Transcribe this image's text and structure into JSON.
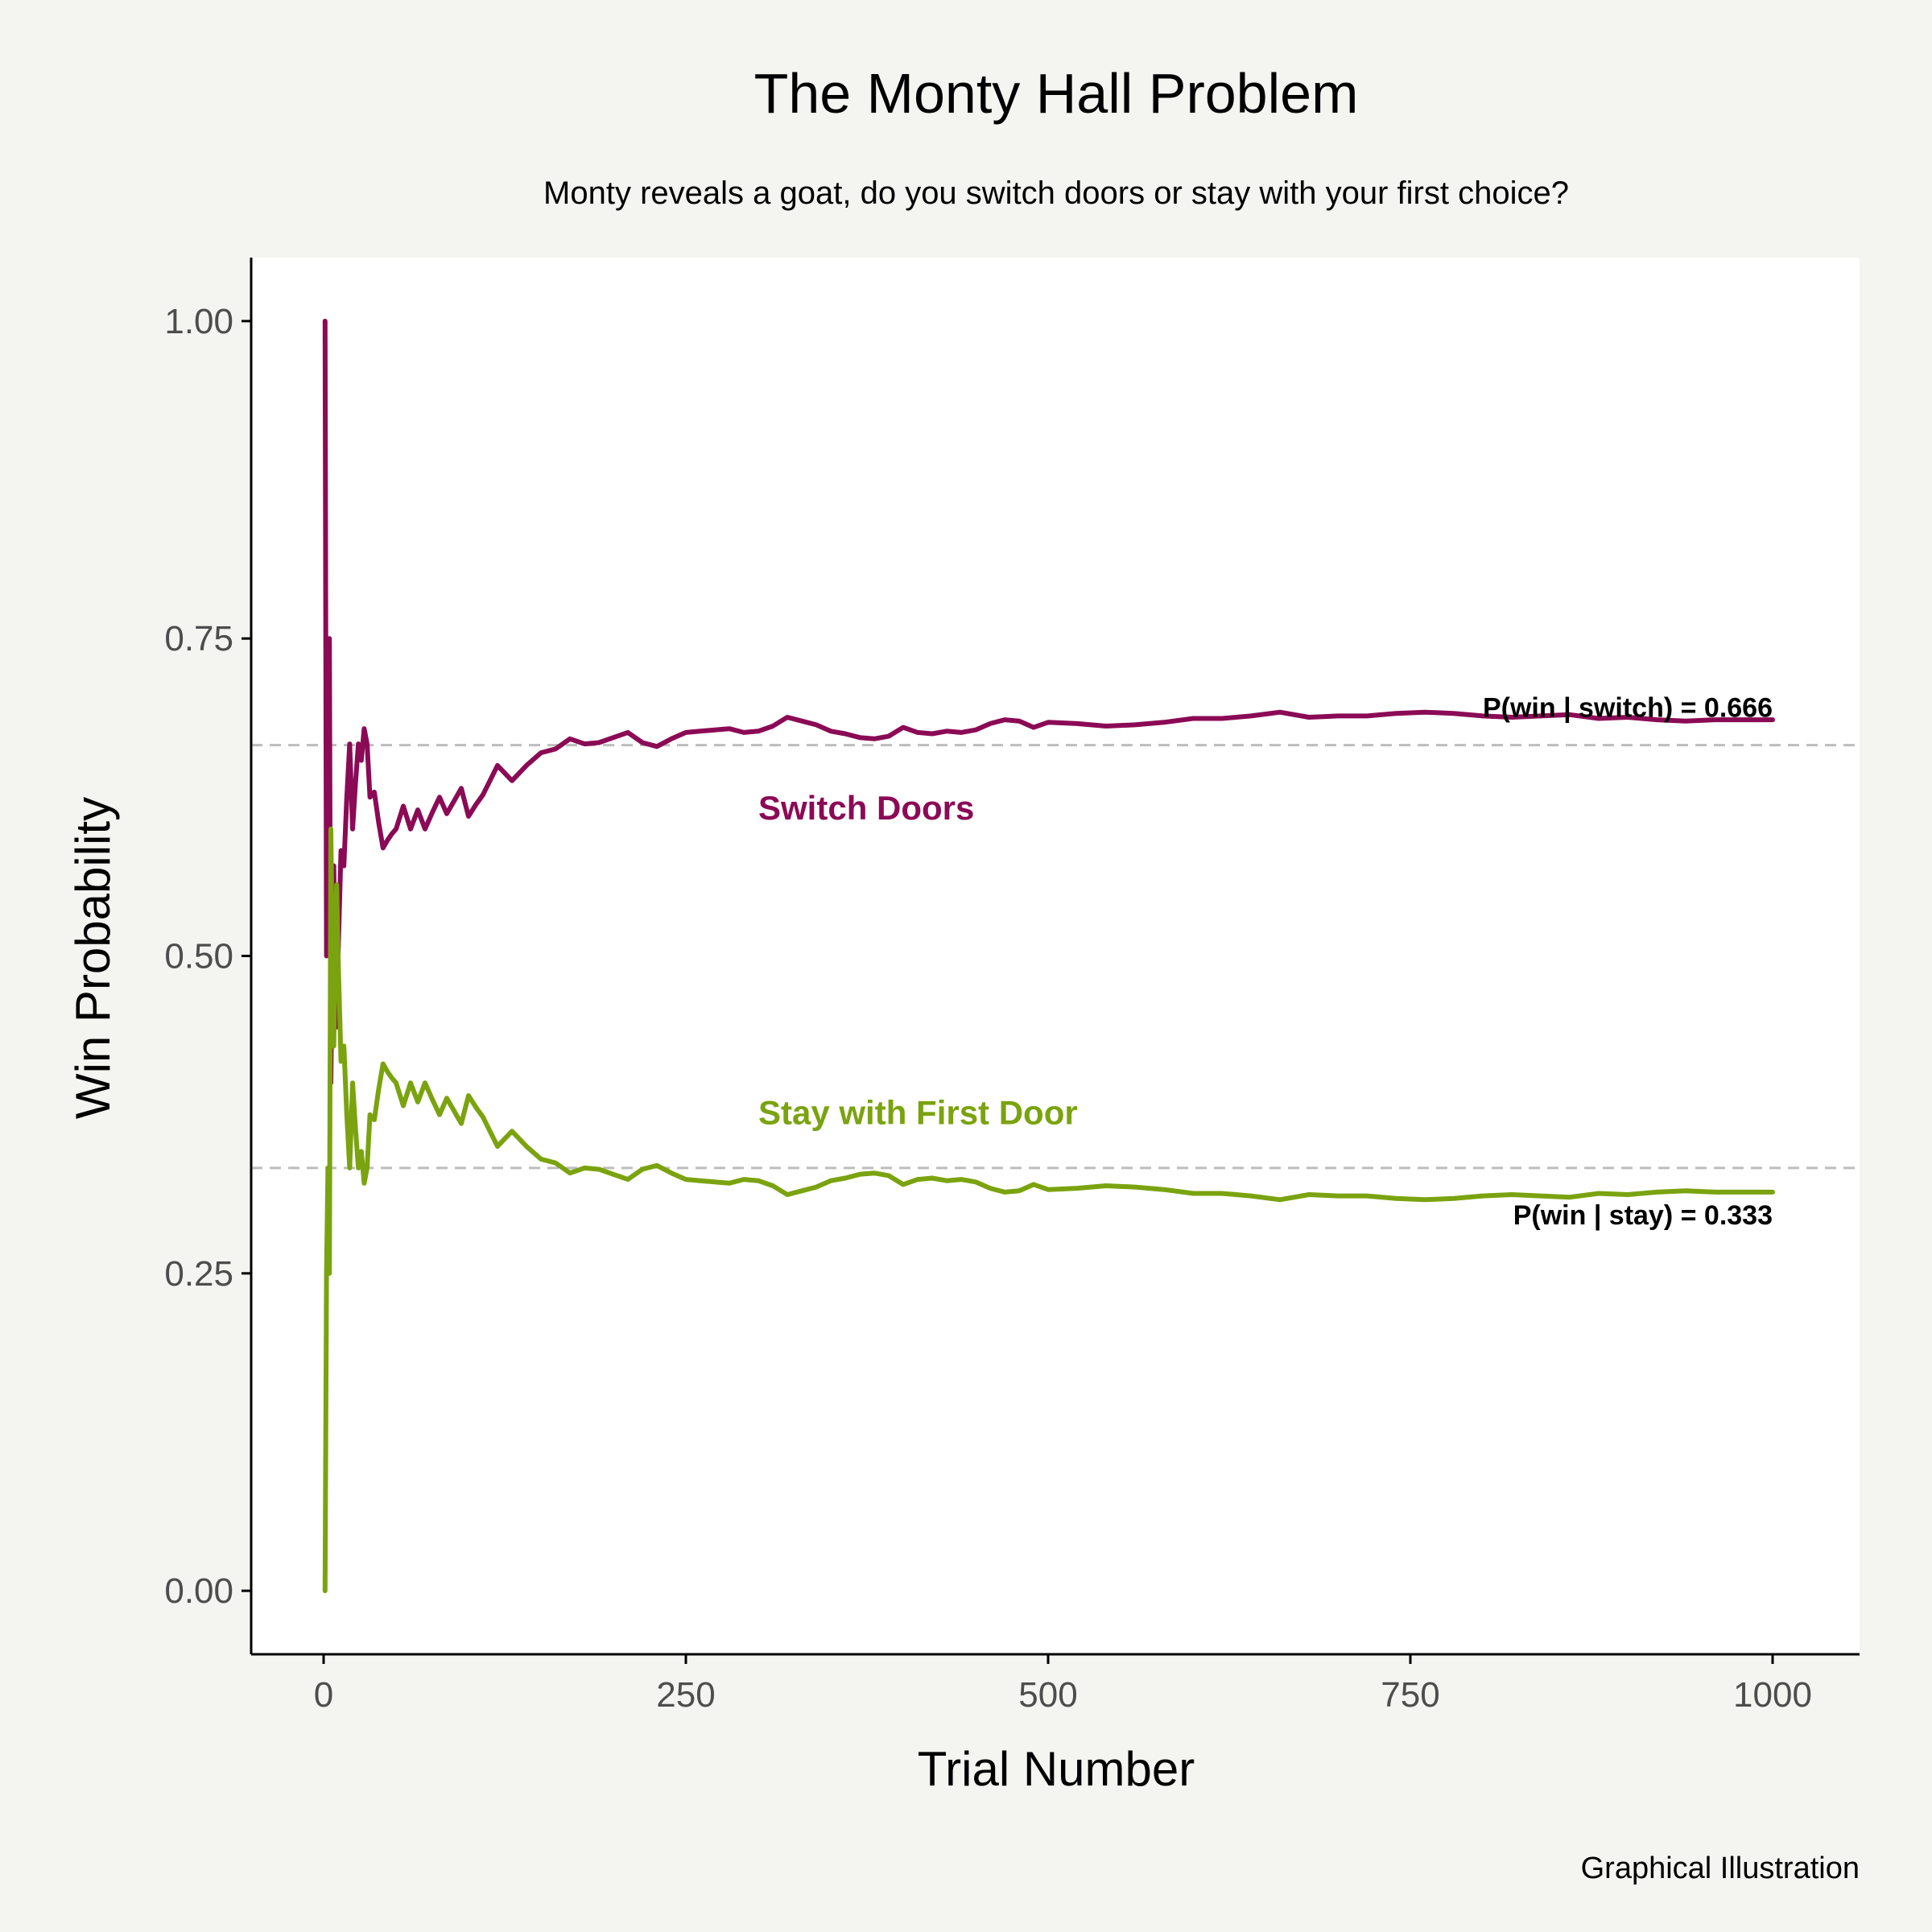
{
  "chart_data": {
    "type": "line",
    "title": "The Monty Hall Problem",
    "subtitle": "Monty reveals a goat, do you switch doors or stay with your first choice?",
    "xlabel": "Trial Number",
    "ylabel": "Win Probability",
    "caption": "Graphical Illustration",
    "xlim": [
      -50,
      1060
    ],
    "ylim": [
      -0.05,
      1.05
    ],
    "x_ticks": [
      0,
      250,
      500,
      750,
      1000
    ],
    "x_tick_labels": [
      "0",
      "250",
      "500",
      "750",
      "1000"
    ],
    "y_ticks": [
      0,
      0.25,
      0.5,
      0.75,
      1.0
    ],
    "y_tick_labels": [
      "0.00",
      "0.25",
      "0.50",
      "0.75",
      "1.00"
    ],
    "grid": false,
    "legend": "none",
    "reference_lines": [
      {
        "y": 0.666,
        "label": "P(win | switch) = 0.666",
        "style": "dashed",
        "color": "#bdbdbd"
      },
      {
        "y": 0.333,
        "label": "P(win | stay) = 0.333",
        "style": "dashed",
        "color": "#bdbdbd"
      }
    ],
    "series": [
      {
        "label": "Switch Doors",
        "color": "#8b0a55",
        "label_position": {
          "x": 300,
          "y": 0.617
        },
        "x": [
          1,
          2,
          3,
          4,
          5,
          6,
          7,
          8,
          9,
          10,
          12,
          14,
          16,
          18,
          20,
          22,
          24,
          26,
          28,
          30,
          32,
          35,
          38,
          41,
          44,
          47,
          50,
          55,
          60,
          65,
          70,
          75,
          80,
          85,
          90,
          95,
          100,
          105,
          110,
          120,
          130,
          140,
          150,
          160,
          170,
          180,
          190,
          200,
          210,
          220,
          230,
          240,
          250,
          260,
          270,
          280,
          290,
          300,
          310,
          320,
          330,
          340,
          350,
          360,
          370,
          380,
          390,
          400,
          410,
          420,
          430,
          440,
          450,
          460,
          470,
          480,
          490,
          500,
          520,
          540,
          560,
          580,
          600,
          620,
          640,
          660,
          680,
          700,
          720,
          740,
          760,
          780,
          800,
          820,
          840,
          860,
          880,
          900,
          920,
          940,
          960,
          980,
          1000
        ],
        "y": [
          1.0,
          0.5,
          0.667,
          0.75,
          0.4,
          0.5,
          0.571,
          0.5,
          0.444,
          0.5,
          0.583,
          0.571,
          0.625,
          0.667,
          0.6,
          0.636,
          0.667,
          0.654,
          0.679,
          0.667,
          0.625,
          0.629,
          0.605,
          0.585,
          0.591,
          0.596,
          0.6,
          0.618,
          0.6,
          0.615,
          0.6,
          0.613,
          0.625,
          0.612,
          0.622,
          0.632,
          0.61,
          0.619,
          0.627,
          0.65,
          0.638,
          0.65,
          0.66,
          0.663,
          0.671,
          0.667,
          0.668,
          0.672,
          0.676,
          0.668,
          0.665,
          0.671,
          0.676,
          0.677,
          0.678,
          0.679,
          0.676,
          0.677,
          0.681,
          0.688,
          0.685,
          0.682,
          0.677,
          0.675,
          0.672,
          0.671,
          0.673,
          0.68,
          0.676,
          0.675,
          0.677,
          0.676,
          0.678,
          0.683,
          0.686,
          0.685,
          0.68,
          0.684,
          0.683,
          0.681,
          0.682,
          0.684,
          0.687,
          0.687,
          0.689,
          0.692,
          0.688,
          0.689,
          0.689,
          0.691,
          0.692,
          0.691,
          0.689,
          0.688,
          0.689,
          0.69,
          0.687,
          0.688,
          0.686,
          0.685,
          0.686,
          0.686,
          0.686
        ]
      },
      {
        "label": "Stay with First Door",
        "color": "#7aa30f",
        "label_position": {
          "x": 300,
          "y": 0.377
        },
        "x": [
          1,
          2,
          3,
          4,
          5,
          6,
          7,
          8,
          9,
          10,
          12,
          14,
          16,
          18,
          20,
          22,
          24,
          26,
          28,
          30,
          32,
          35,
          38,
          41,
          44,
          47,
          50,
          55,
          60,
          65,
          70,
          75,
          80,
          85,
          90,
          95,
          100,
          105,
          110,
          120,
          130,
          140,
          150,
          160,
          170,
          180,
          190,
          200,
          210,
          220,
          230,
          240,
          250,
          260,
          270,
          280,
          290,
          300,
          310,
          320,
          330,
          340,
          350,
          360,
          370,
          380,
          390,
          400,
          410,
          420,
          430,
          440,
          450,
          460,
          470,
          480,
          490,
          500,
          520,
          540,
          560,
          580,
          600,
          620,
          640,
          660,
          680,
          700,
          720,
          740,
          760,
          780,
          800,
          820,
          840,
          860,
          880,
          900,
          920,
          940,
          960,
          980,
          1000
        ],
        "y": [
          0.0,
          0.25,
          0.333,
          0.25,
          0.6,
          0.5,
          0.429,
          0.5,
          0.556,
          0.5,
          0.417,
          0.429,
          0.375,
          0.333,
          0.4,
          0.364,
          0.333,
          0.346,
          0.321,
          0.333,
          0.375,
          0.371,
          0.395,
          0.415,
          0.409,
          0.404,
          0.4,
          0.382,
          0.4,
          0.385,
          0.4,
          0.387,
          0.375,
          0.388,
          0.378,
          0.368,
          0.39,
          0.381,
          0.373,
          0.35,
          0.362,
          0.35,
          0.34,
          0.337,
          0.329,
          0.333,
          0.332,
          0.328,
          0.324,
          0.332,
          0.335,
          0.329,
          0.324,
          0.323,
          0.322,
          0.321,
          0.324,
          0.323,
          0.319,
          0.312,
          0.315,
          0.318,
          0.323,
          0.325,
          0.328,
          0.329,
          0.327,
          0.32,
          0.324,
          0.325,
          0.323,
          0.324,
          0.322,
          0.317,
          0.314,
          0.315,
          0.32,
          0.316,
          0.317,
          0.319,
          0.318,
          0.316,
          0.313,
          0.313,
          0.311,
          0.308,
          0.312,
          0.311,
          0.311,
          0.309,
          0.308,
          0.309,
          0.311,
          0.312,
          0.311,
          0.31,
          0.313,
          0.312,
          0.314,
          0.315,
          0.314,
          0.314,
          0.314
        ]
      }
    ]
  }
}
